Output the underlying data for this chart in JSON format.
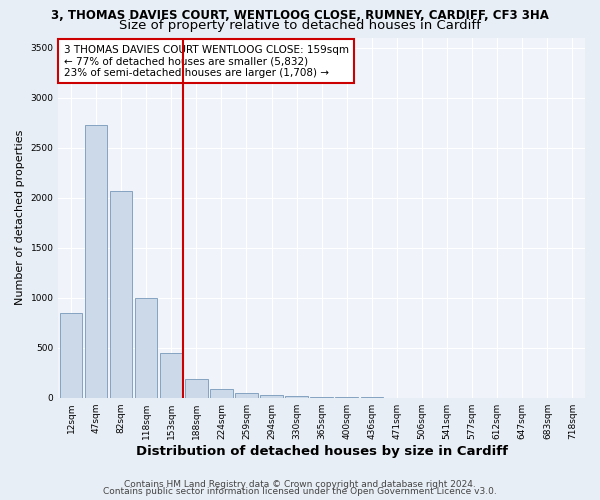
{
  "title_line1": "3, THOMAS DAVIES COURT, WENTLOOG CLOSE, RUMNEY, CARDIFF, CF3 3HA",
  "title_line2": "Size of property relative to detached houses in Cardiff",
  "xlabel": "Distribution of detached houses by size in Cardiff",
  "ylabel": "Number of detached properties",
  "bin_labels": [
    "12sqm",
    "47sqm",
    "82sqm",
    "118sqm",
    "153sqm",
    "188sqm",
    "224sqm",
    "259sqm",
    "294sqm",
    "330sqm",
    "365sqm",
    "400sqm",
    "436sqm",
    "471sqm",
    "506sqm",
    "541sqm",
    "577sqm",
    "612sqm",
    "647sqm",
    "683sqm",
    "718sqm"
  ],
  "bar_heights": [
    850,
    2730,
    2070,
    1000,
    450,
    190,
    90,
    50,
    30,
    15,
    10,
    5,
    3,
    2,
    2,
    1,
    1,
    1,
    1,
    1,
    0
  ],
  "bar_color": "#ccd9e8",
  "bar_edge_color": "#7799bb",
  "marker_index": 4,
  "marker_color": "#cc0000",
  "annotation_text": "3 THOMAS DAVIES COURT WENTLOOG CLOSE: 159sqm\n← 77% of detached houses are smaller (5,832)\n23% of semi-detached houses are larger (1,708) →",
  "annotation_box_color": "#ffffff",
  "annotation_box_edge_color": "#cc0000",
  "ylim": [
    0,
    3600
  ],
  "yticks": [
    0,
    500,
    1000,
    1500,
    2000,
    2500,
    3000,
    3500
  ],
  "footer_line1": "Contains HM Land Registry data © Crown copyright and database right 2024.",
  "footer_line2": "Contains public sector information licensed under the Open Government Licence v3.0.",
  "bg_color": "#e8eef5",
  "plot_bg_color": "#f0f4fa",
  "grid_color": "#ffffff",
  "title_fontsize": 8.5,
  "subtitle_fontsize": 9.5,
  "ylabel_fontsize": 8,
  "xlabel_fontsize": 9.5,
  "tick_fontsize": 6.5,
  "annotation_fontsize": 7.5,
  "footer_fontsize": 6.5
}
